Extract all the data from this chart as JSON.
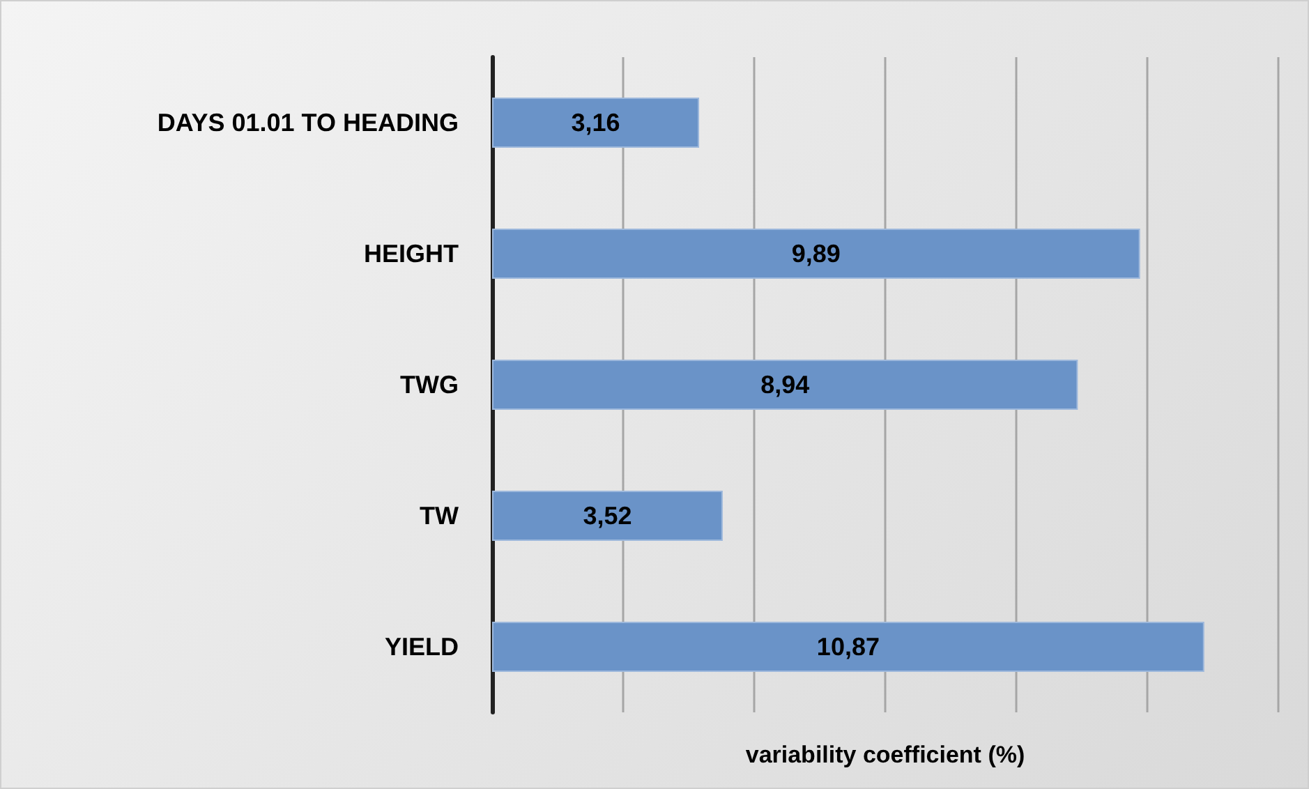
{
  "chart_data": {
    "type": "bar",
    "orientation": "horizontal",
    "xlabel": "variability coefficient (%)",
    "categories": [
      "DAYS 01.01 TO HEADING",
      "HEIGHT",
      "TWG",
      "TW",
      "YIELD"
    ],
    "values": [
      3.16,
      9.89,
      8.94,
      3.52,
      10.87
    ],
    "color": "#6a93c8",
    "value_labels": [
      "3,16",
      "9,89",
      "8,94",
      "3,52",
      "10,87"
    ],
    "xlim": [
      0,
      12
    ],
    "xticks": [
      {
        "value": 0,
        "label": null
      },
      {
        "value": 2,
        "label": null
      },
      {
        "value": 4,
        "label": null
      },
      {
        "value": 6,
        "label": null
      },
      {
        "value": 8,
        "label": null
      },
      {
        "value": 10,
        "label": null
      },
      {
        "value": 12,
        "label": null
      }
    ],
    "grid": "x",
    "tick_labels": "y"
  }
}
